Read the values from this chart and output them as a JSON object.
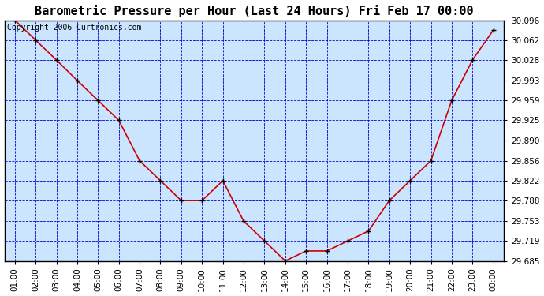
{
  "title": "Barometric Pressure per Hour (Last 24 Hours) Fri Feb 17 00:00",
  "copyright": "Copyright 2006 Curtronics.com",
  "x_labels": [
    "01:00",
    "02:00",
    "03:00",
    "04:00",
    "05:00",
    "06:00",
    "07:00",
    "08:00",
    "09:00",
    "10:00",
    "11:00",
    "12:00",
    "13:00",
    "14:00",
    "15:00",
    "16:00",
    "17:00",
    "18:00",
    "19:00",
    "20:00",
    "21:00",
    "22:00",
    "23:00",
    "00:00"
  ],
  "x_values": [
    1,
    2,
    3,
    4,
    5,
    6,
    7,
    8,
    9,
    10,
    11,
    12,
    13,
    14,
    15,
    16,
    17,
    18,
    19,
    20,
    21,
    22,
    23,
    24
  ],
  "y_values": [
    30.096,
    30.062,
    30.028,
    29.993,
    29.959,
    29.925,
    29.856,
    29.822,
    29.788,
    29.788,
    29.822,
    29.753,
    29.719,
    29.685,
    29.702,
    29.702,
    29.719,
    29.736,
    29.788,
    29.822,
    29.856,
    29.959,
    30.028,
    30.079
  ],
  "ylim_min": 29.685,
  "ylim_max": 30.096,
  "yticks": [
    29.685,
    29.719,
    29.753,
    29.788,
    29.822,
    29.856,
    29.89,
    29.925,
    29.959,
    29.993,
    30.028,
    30.062,
    30.096
  ],
  "line_color": "#cc0000",
  "marker_color": "#000000",
  "fig_bg_color": "#ffffff",
  "plot_bg_color": "#cce5ff",
  "grid_color": "#0000cc",
  "border_color": "#000000",
  "title_fontsize": 11,
  "copyright_fontsize": 7,
  "tick_fontsize": 7.5
}
